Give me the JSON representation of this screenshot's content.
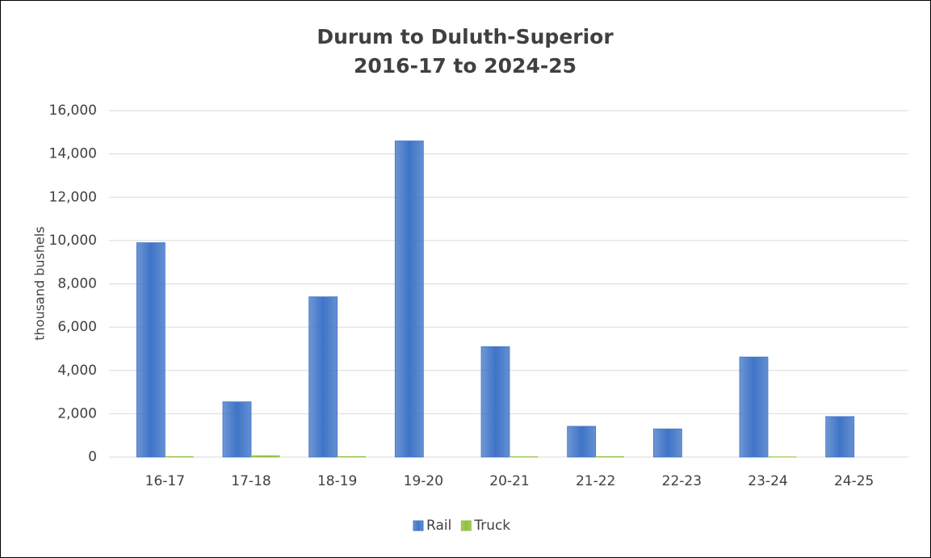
{
  "chart_data": {
    "type": "bar",
    "title": "Durum to Duluth-Superior",
    "subtitle": "2016-17 to 2024-25",
    "y_label": "thousand bushels",
    "categories": [
      "16-17",
      "17-18",
      "18-19",
      "19-20",
      "20-21",
      "21-22",
      "22-23",
      "23-24",
      "24-25"
    ],
    "series": [
      {
        "name": "Rail",
        "color": "#3f74c7",
        "values": [
          9900,
          2550,
          7400,
          14600,
          5100,
          1420,
          1300,
          4620,
          1870
        ]
      },
      {
        "name": "Truck",
        "color": "#8fbf3c",
        "values": [
          20,
          60,
          20,
          0,
          15,
          20,
          0,
          10,
          0
        ]
      }
    ],
    "ylim": [
      0,
      16000
    ],
    "yticks": [
      0,
      {
        "value": 2000,
        "label": "2,000"
      },
      {
        "value": 4000,
        "label": "4,000"
      },
      {
        "value": 6000,
        "label": "6,000"
      },
      {
        "value": 8000,
        "label": "8,000"
      },
      {
        "value": 10000,
        "label": "10,000"
      },
      {
        "value": 12000,
        "label": "12,000"
      },
      {
        "value": 14000,
        "label": "14,000"
      },
      {
        "value": 16000,
        "label": "16,000"
      }
    ],
    "grid": true,
    "legend": "bottom"
  }
}
